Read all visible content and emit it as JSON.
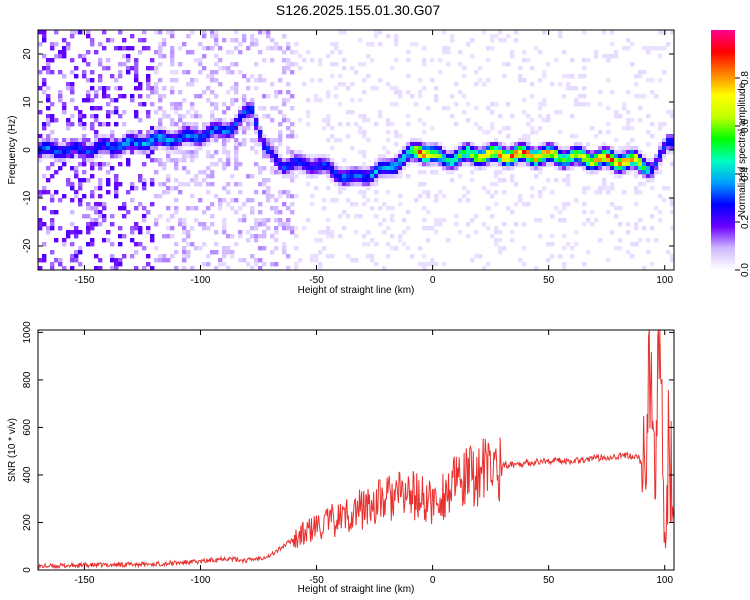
{
  "title": "S126.2025.155.01.30.G07",
  "chart_data": [
    {
      "type": "heatmap",
      "xlabel": "Height of straight line (km)",
      "ylabel": "Frequency (Hz)",
      "xlim": [
        -170,
        104
      ],
      "ylim": [
        -25,
        25
      ],
      "xticks": [
        -150,
        -100,
        -50,
        0,
        50,
        100
      ],
      "yticks": [
        -20,
        -10,
        0,
        10,
        20
      ],
      "colorbar": {
        "label": "Normalized spectral amplitude",
        "range": [
          0,
          1
        ],
        "ticks": [
          0.0,
          0.2,
          0.4,
          0.6,
          0.8
        ],
        "colors": [
          "#ffffff",
          "#d0b8ff",
          "#6a00ff",
          "#0000ff",
          "#00a0ff",
          "#00ffc0",
          "#00ff00",
          "#c0ff00",
          "#ffff00",
          "#ff8000",
          "#ff0000",
          "#ff0090"
        ]
      },
      "ridge": [
        {
          "x": -165,
          "y": 0,
          "a": 0.35
        },
        {
          "x": -150,
          "y": 0,
          "a": 0.3
        },
        {
          "x": -135,
          "y": 1,
          "a": 0.35
        },
        {
          "x": -120,
          "y": 2,
          "a": 0.4
        },
        {
          "x": -100,
          "y": 3,
          "a": 0.35
        },
        {
          "x": -85,
          "y": 5,
          "a": 0.35
        },
        {
          "x": -78,
          "y": 9,
          "a": 0.3
        },
        {
          "x": -72,
          "y": 0,
          "a": 0.3
        },
        {
          "x": -65,
          "y": -3,
          "a": 0.3
        },
        {
          "x": -50,
          "y": -3,
          "a": 0.3
        },
        {
          "x": -35,
          "y": -6,
          "a": 0.35
        },
        {
          "x": -20,
          "y": -4,
          "a": 0.4
        },
        {
          "x": -10,
          "y": -1,
          "a": 0.5
        },
        {
          "x": -5,
          "y": 0,
          "a": 0.9
        },
        {
          "x": 5,
          "y": -2,
          "a": 0.5
        },
        {
          "x": 15,
          "y": -1,
          "a": 0.6
        },
        {
          "x": 30,
          "y": -1,
          "a": 0.85
        },
        {
          "x": 45,
          "y": -1,
          "a": 0.85
        },
        {
          "x": 60,
          "y": -1.5,
          "a": 0.6
        },
        {
          "x": 75,
          "y": -2,
          "a": 0.9
        },
        {
          "x": 88,
          "y": -2.5,
          "a": 0.8
        },
        {
          "x": 95,
          "y": -4,
          "a": 0.3
        },
        {
          "x": 102,
          "y": 2,
          "a": 0.3
        }
      ]
    },
    {
      "type": "line",
      "xlabel": "Height of straight line (km)",
      "ylabel": "SNR (10 * v/v)",
      "xlim": [
        -170,
        104
      ],
      "ylim": [
        0,
        1010
      ],
      "xticks": [
        -150,
        -100,
        -50,
        0,
        50,
        100
      ],
      "yticks": [
        0,
        200,
        400,
        600,
        800,
        1000
      ],
      "color": "#e8312f",
      "series": [
        {
          "x": [
            -170,
            -150,
            -120,
            -100,
            -90,
            -80,
            -70,
            -60,
            -50,
            -40,
            -30,
            -20,
            -10,
            0,
            10,
            20,
            30,
            40,
            50,
            60,
            70,
            80,
            88,
            92,
            94,
            96,
            98,
            100,
            102,
            104
          ],
          "y": [
            15,
            20,
            25,
            35,
            50,
            40,
            60,
            130,
            180,
            220,
            260,
            300,
            320,
            280,
            360,
            410,
            440,
            450,
            460,
            460,
            470,
            480,
            480,
            420,
            900,
            250,
            1000,
            100,
            600,
            200
          ]
        }
      ]
    }
  ]
}
